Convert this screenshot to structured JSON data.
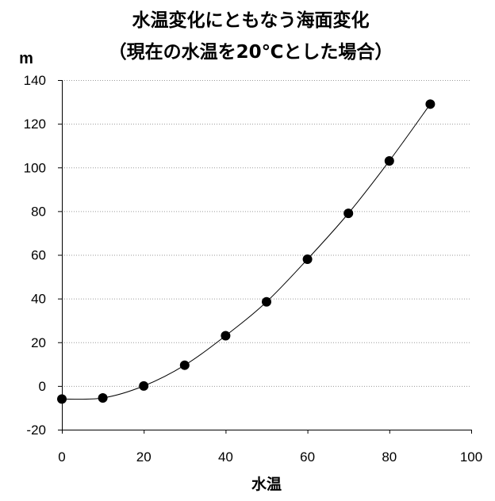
{
  "chart_data": {
    "type": "scatter",
    "title": "水温変化にともなう海面変化",
    "subtitle": "（現在の水温を20℃とした場合）",
    "ylabel": "m",
    "xlabel": "水温",
    "xlim": [
      0,
      100
    ],
    "ylim": [
      -20,
      140
    ],
    "x_ticks": [
      0,
      20,
      40,
      60,
      80,
      100
    ],
    "y_ticks": [
      -20,
      0,
      20,
      40,
      60,
      80,
      100,
      120,
      140
    ],
    "grid": true,
    "x": [
      0,
      10,
      20,
      30,
      40,
      50,
      60,
      70,
      80,
      90
    ],
    "y": [
      -6,
      -5.5,
      0,
      9.5,
      23,
      38.5,
      58,
      79,
      103,
      129
    ]
  }
}
